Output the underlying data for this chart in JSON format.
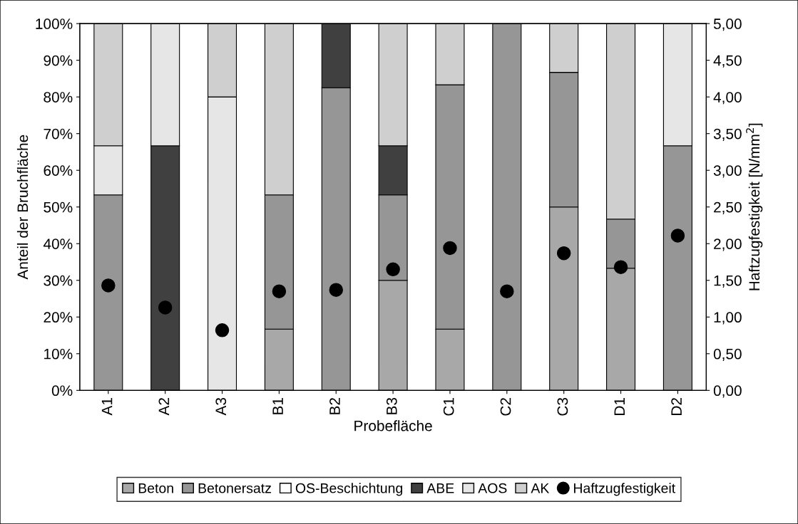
{
  "chart_data": {
    "type": "bar",
    "stacked": true,
    "xlabel": "Probefläche",
    "ylabel": "Anteil der Bruchfläche",
    "y2label": "Haftzugfestigkeit [N/mm$^{2}$]",
    "categories": [
      "A1",
      "A2",
      "A3",
      "B1",
      "B2",
      "B3",
      "C1",
      "C2",
      "C3",
      "D1",
      "D2"
    ],
    "series": [
      {
        "name": "Beton",
        "color": "#a8a8a8",
        "values": [
          0,
          0,
          0,
          16.7,
          0,
          30,
          16.7,
          0,
          50,
          33.3,
          0
        ]
      },
      {
        "name": "Betonersatz",
        "color": "#969696",
        "values": [
          53.3,
          0,
          0,
          36.6,
          82.5,
          23.3,
          66.6,
          100,
          36.7,
          13.4,
          66.7
        ]
      },
      {
        "name": "OS-Beschichtung",
        "color": "#ffffff",
        "values": [
          0,
          0,
          0,
          0,
          0,
          0,
          0,
          0,
          0,
          0,
          0
        ]
      },
      {
        "name": "ABE",
        "color": "#404040",
        "values": [
          0,
          66.7,
          0,
          0,
          17.5,
          13.4,
          0,
          0,
          0,
          0,
          0
        ]
      },
      {
        "name": "AOS",
        "color": "#e6e6e6",
        "values": [
          13.4,
          33.3,
          80,
          0,
          0,
          0,
          0,
          0,
          0,
          0,
          33.3
        ]
      },
      {
        "name": "AK",
        "color": "#cfcfcf",
        "values": [
          33.3,
          0,
          20,
          46.7,
          0,
          33.3,
          16.7,
          0,
          13.3,
          53.3,
          0
        ]
      },
      {
        "name": "Haftzugfestigkeit",
        "type": "scatter",
        "axis": "y2",
        "color": "#000000",
        "marker": "circle",
        "values": [
          1.43,
          1.13,
          0.82,
          1.35,
          1.37,
          1.65,
          1.94,
          1.35,
          1.87,
          1.68,
          2.11
        ]
      }
    ],
    "ylim": [
      0,
      100
    ],
    "yticks": [
      {
        "value": 0,
        "label": "0%"
      },
      {
        "value": 10,
        "label": "10%"
      },
      {
        "value": 20,
        "label": "20%"
      },
      {
        "value": 30,
        "label": "30%"
      },
      {
        "value": 40,
        "label": "40%"
      },
      {
        "value": 50,
        "label": "50%"
      },
      {
        "value": 60,
        "label": "60%"
      },
      {
        "value": 70,
        "label": "70%"
      },
      {
        "value": 80,
        "label": "80%"
      },
      {
        "value": 90,
        "label": "90%"
      },
      {
        "value": 100,
        "label": "100%"
      }
    ],
    "y2lim": [
      0,
      5
    ],
    "y2ticks": [
      {
        "value": 0,
        "label": "0,00"
      },
      {
        "value": 0.5,
        "label": "0,50"
      },
      {
        "value": 1,
        "label": "1,00"
      },
      {
        "value": 1.5,
        "label": "1,50"
      },
      {
        "value": 2,
        "label": "2,00"
      },
      {
        "value": 2.5,
        "label": "2,50"
      },
      {
        "value": 3,
        "label": "3,00"
      },
      {
        "value": 3.5,
        "label": "3,50"
      },
      {
        "value": 4,
        "label": "4,00"
      },
      {
        "value": 4.5,
        "label": "4,50"
      },
      {
        "value": 5,
        "label": "5,00"
      }
    ],
    "legend": "bottom",
    "grid": false
  }
}
